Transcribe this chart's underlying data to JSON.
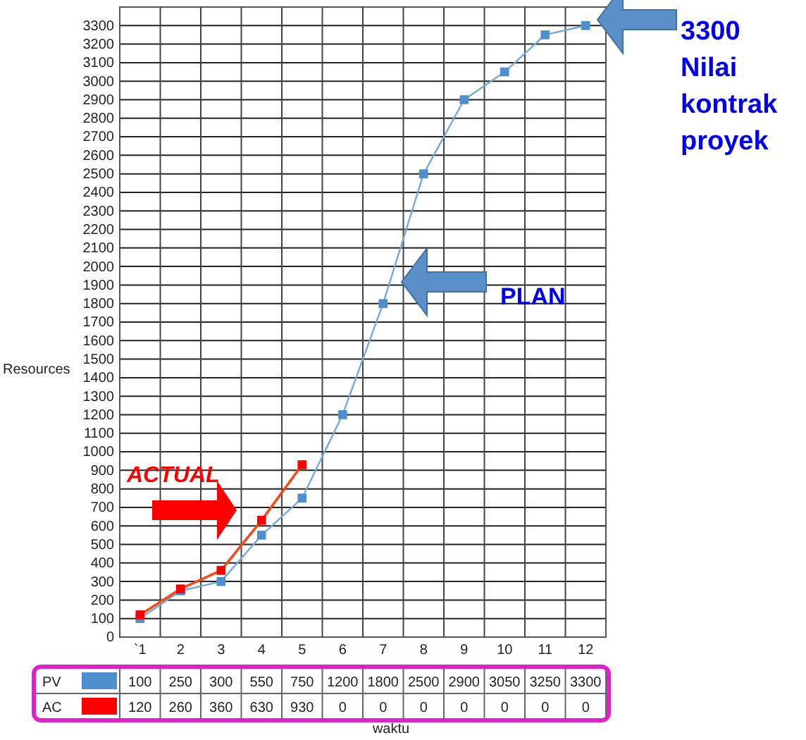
{
  "chart_data": {
    "type": "line",
    "xlabel": "waktu",
    "ylabel": "Resources",
    "categories": [
      "`1",
      "2",
      "3",
      "4",
      "5",
      "6",
      "7",
      "8",
      "9",
      "10",
      "11",
      "12"
    ],
    "series": [
      {
        "name": "PV",
        "color": "#4f8fd0",
        "values": [
          100,
          250,
          300,
          550,
          750,
          1200,
          1800,
          2500,
          2900,
          3050,
          3250,
          3300
        ],
        "value_labels": [
          "100",
          "250",
          "300",
          "550",
          "750",
          "1200",
          "1800",
          "2500",
          "2900",
          "3050",
          "3250",
          "3300"
        ]
      },
      {
        "name": "AC",
        "color": "#ff0000",
        "values": [
          120,
          260,
          360,
          630,
          930,
          null,
          null,
          null,
          null,
          null,
          null,
          null
        ],
        "value_labels": [
          "120",
          "260",
          "360",
          "630",
          "930",
          "0",
          "0",
          "0",
          "0",
          "0",
          "0",
          "0"
        ]
      }
    ],
    "ylim": [
      0,
      3400
    ],
    "yticks": [
      0,
      100,
      200,
      300,
      400,
      500,
      600,
      700,
      800,
      900,
      1000,
      1100,
      1200,
      1300,
      1400,
      1500,
      1600,
      1700,
      1800,
      1900,
      2000,
      2100,
      2200,
      2300,
      2400,
      2500,
      2600,
      2700,
      2800,
      2900,
      3000,
      3100,
      3200,
      3300
    ],
    "grid": true,
    "legend": "bottom",
    "marker": "square",
    "line_style": "solid",
    "annotations": [
      "3300 Nilai kontrak proyek",
      "PLAN",
      "ACTUAL"
    ]
  }
}
